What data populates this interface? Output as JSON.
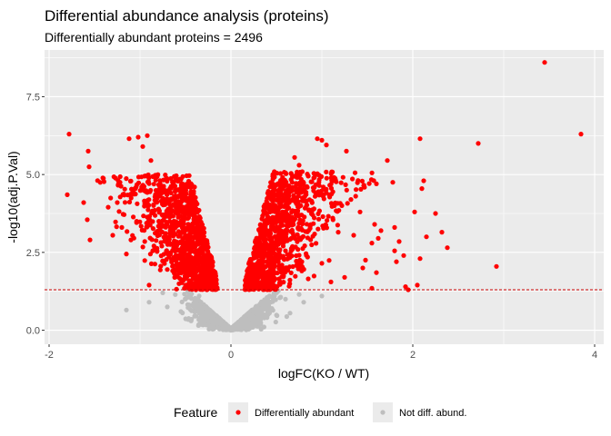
{
  "chart_data": {
    "type": "scatter",
    "title": "Differential abundance analysis (proteins)",
    "subtitle": "Differentially abundant proteins =  2496",
    "xlabel": "logFC(KO / WT)",
    "ylabel": "-log10(adj.P.Val)",
    "xlim": [
      -2.05,
      4.1
    ],
    "ylim": [
      -0.45,
      9.0
    ],
    "x_ticks": [
      -2,
      0,
      2,
      4
    ],
    "y_ticks": [
      0.0,
      2.5,
      5.0,
      7.5
    ],
    "x_tick_labels": [
      "-2",
      "0",
      "2",
      "4"
    ],
    "y_tick_labels": [
      "0.0",
      "2.5",
      "5.0",
      "7.5"
    ],
    "grid": true,
    "threshold_line": {
      "y": 1.3,
      "style": "dashed",
      "color": "#cc0000"
    },
    "legend": {
      "position": "bottom",
      "title": "Feature",
      "entries": [
        "Differentially abundant",
        "Not diff. abund."
      ]
    },
    "colors": {
      "significant": "#ff0000",
      "not_significant": "#bebebe",
      "panel_background": "#ebebeb",
      "grid": "#ffffff"
    },
    "series": [
      {
        "name": "Differentially abundant",
        "color": "#ff0000",
        "points": [
          [
            -1.78,
            6.3
          ],
          [
            -1.8,
            4.35
          ],
          [
            -1.62,
            4.1
          ],
          [
            -1.58,
            3.55
          ],
          [
            -1.55,
            2.9
          ],
          [
            -1.57,
            5.75
          ],
          [
            -1.56,
            5.25
          ],
          [
            -1.35,
            3.95
          ],
          [
            -1.3,
            3.05
          ],
          [
            -1.22,
            4.75
          ],
          [
            -1.2,
            3.3
          ],
          [
            -1.15,
            2.45
          ],
          [
            -1.12,
            6.15
          ],
          [
            -1.02,
            6.2
          ],
          [
            -0.97,
            5.9
          ],
          [
            -0.92,
            6.25
          ],
          [
            -0.88,
            5.45
          ],
          [
            -1.25,
            4.1
          ],
          [
            -0.6,
            2.1
          ],
          [
            -0.7,
            1.95
          ],
          [
            -0.86,
            2.55
          ],
          [
            -0.9,
            1.45
          ],
          [
            -0.95,
            4.95
          ],
          [
            -0.78,
            3.25
          ],
          [
            -0.48,
            2.6
          ],
          [
            -0.38,
            1.7
          ],
          [
            -0.34,
            2.25
          ],
          [
            -0.3,
            1.55
          ],
          [
            -0.22,
            1.4
          ],
          [
            -0.18,
            1.35
          ],
          [
            -0.65,
            3.85
          ],
          [
            -0.55,
            4.4
          ],
          [
            -0.45,
            3.1
          ],
          [
            -0.42,
            3.8
          ],
          [
            -0.4,
            4.6
          ],
          [
            -0.35,
            2.9
          ],
          [
            -0.28,
            2.1
          ],
          [
            -0.5,
            1.45
          ],
          [
            -0.25,
            1.8
          ],
          [
            -1.05,
            4.55
          ],
          [
            -1.1,
            2.9
          ],
          [
            -0.82,
            4.15
          ],
          [
            0.28,
            1.55
          ],
          [
            0.32,
            1.9
          ],
          [
            0.35,
            2.35
          ],
          [
            0.4,
            2.75
          ],
          [
            0.45,
            3.4
          ],
          [
            0.48,
            2.05
          ],
          [
            0.52,
            3.85
          ],
          [
            0.55,
            4.05
          ],
          [
            0.62,
            3.2
          ],
          [
            0.6,
            2.55
          ],
          [
            0.67,
            4.55
          ],
          [
            0.7,
            5.55
          ],
          [
            0.75,
            5.3
          ],
          [
            0.78,
            2.2
          ],
          [
            0.85,
            4.95
          ],
          [
            0.9,
            3.7
          ],
          [
            0.95,
            6.15
          ],
          [
            1.0,
            6.1
          ],
          [
            1.05,
            5.95
          ],
          [
            1.08,
            4.35
          ],
          [
            1.12,
            3.6
          ],
          [
            1.18,
            3.15
          ],
          [
            1.22,
            4.0
          ],
          [
            1.27,
            5.75
          ],
          [
            1.32,
            4.2
          ],
          [
            1.35,
            3.05
          ],
          [
            1.42,
            3.8
          ],
          [
            1.48,
            2.25
          ],
          [
            1.55,
            2.8
          ],
          [
            1.58,
            3.4
          ],
          [
            1.6,
            4.7
          ],
          [
            1.62,
            2.95
          ],
          [
            1.65,
            3.2
          ],
          [
            1.72,
            5.45
          ],
          [
            1.78,
            4.75
          ],
          [
            1.8,
            3.3
          ],
          [
            1.82,
            2.2
          ],
          [
            1.85,
            2.85
          ],
          [
            1.9,
            2.4
          ],
          [
            1.92,
            1.4
          ],
          [
            1.95,
            1.3
          ],
          [
            1.8,
            2.55
          ],
          [
            2.02,
            3.8
          ],
          [
            2.08,
            6.15
          ],
          [
            2.1,
            4.55
          ],
          [
            2.05,
            1.45
          ],
          [
            2.15,
            3.0
          ],
          [
            2.08,
            2.3
          ],
          [
            2.12,
            4.8
          ],
          [
            2.25,
            3.75
          ],
          [
            2.32,
            3.15
          ],
          [
            2.38,
            2.65
          ],
          [
            2.72,
            6.0
          ],
          [
            2.92,
            2.05
          ],
          [
            3.45,
            8.6
          ],
          [
            3.85,
            6.3
          ],
          [
            0.3,
            1.4
          ],
          [
            0.22,
            1.32
          ],
          [
            0.38,
            1.75
          ],
          [
            1.25,
            1.7
          ],
          [
            1.45,
            2.0
          ],
          [
            1.55,
            1.35
          ],
          [
            1.6,
            1.85
          ],
          [
            1.0,
            2.15
          ],
          [
            1.1,
            1.55
          ],
          [
            0.85,
            1.65
          ]
        ],
        "clusters": [
          {
            "x_range": [
              -1.5,
              -0.15
            ],
            "x_center": -0.6,
            "y_range": [
              1.3,
              5.0
            ],
            "y_mode": 2.9,
            "count": 1060
          },
          {
            "x_range": [
              0.15,
              1.7
            ],
            "x_center": 0.6,
            "y_range": [
              1.3,
              5.1
            ],
            "y_mode": 2.6,
            "count": 1020
          }
        ]
      },
      {
        "name": "Not diff. abund.",
        "color": "#bebebe",
        "points": [
          [
            -1.15,
            0.65
          ],
          [
            -0.9,
            0.9
          ],
          [
            -0.7,
            0.75
          ],
          [
            -0.55,
            0.6
          ],
          [
            -0.5,
            1.0
          ],
          [
            -0.4,
            0.45
          ],
          [
            -0.3,
            0.3
          ],
          [
            -0.2,
            0.15
          ],
          [
            -0.1,
            0.05
          ],
          [
            0.0,
            0.0
          ],
          [
            0.1,
            0.05
          ],
          [
            0.2,
            0.2
          ],
          [
            0.3,
            0.4
          ],
          [
            0.45,
            0.7
          ],
          [
            0.6,
            1.0
          ],
          [
            0.75,
            1.15
          ],
          [
            0.8,
            0.9
          ],
          [
            0.65,
            0.55
          ],
          [
            1.0,
            1.1
          ],
          [
            -0.75,
            1.2
          ],
          [
            -0.35,
            1.1
          ]
        ],
        "clusters": [
          {
            "x_range": [
              -0.95,
              0.95
            ],
            "x_center": 0.0,
            "y_max": 1.28,
            "count": 1500
          }
        ]
      }
    ]
  }
}
